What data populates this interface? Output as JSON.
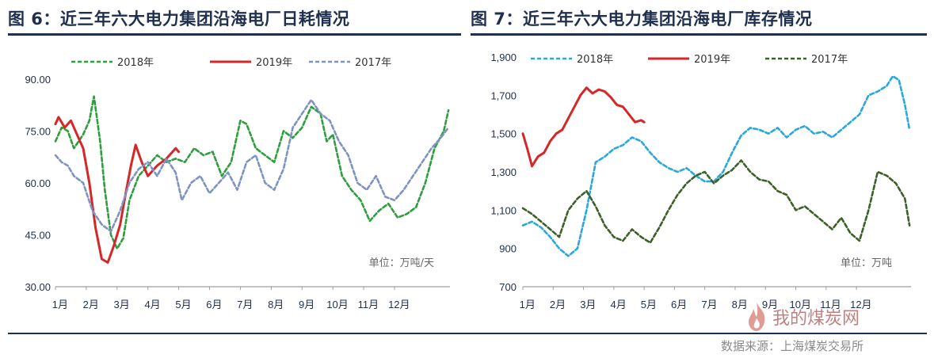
{
  "page": {
    "source": "数据来源：上海煤炭交易所",
    "watermark": "我的煤炭网",
    "watermark_url": "www.yicoal.cn"
  },
  "chart_data": [
    {
      "type": "line",
      "title": "图 6：近三年六大电力集团沿海电厂日耗情况",
      "unit": "单位：万吨/天",
      "xlabel": "",
      "ylabel": "",
      "ylim": [
        30,
        95
      ],
      "y_ticks": [
        "30.00",
        "45.00",
        "60.00",
        "75.00",
        "90.00"
      ],
      "y_tick_values": [
        30,
        45,
        60,
        75,
        90
      ],
      "x_ticks": [
        "1月",
        "2月",
        "3月",
        "4月",
        "5月",
        "6月",
        "7月",
        "8月",
        "9月",
        "10月",
        "11月",
        "12月"
      ],
      "xlim": [
        0,
        12.8
      ],
      "legend_position": "top",
      "grid": false,
      "series": [
        {
          "name": "2018年",
          "color": "#2e9e3f",
          "dash": "dashed",
          "x": [
            0,
            0.2,
            0.4,
            0.6,
            0.9,
            1.1,
            1.25,
            1.45,
            1.6,
            1.8,
            2.0,
            2.2,
            2.4,
            2.7,
            3.0,
            3.3,
            3.6,
            3.9,
            4.2,
            4.5,
            4.8,
            5.1,
            5.4,
            5.7,
            6.0,
            6.2,
            6.5,
            6.8,
            7.1,
            7.4,
            7.7,
            8.0,
            8.3,
            8.6,
            8.8,
            9.0,
            9.3,
            9.6,
            9.9,
            10.2,
            10.5,
            10.8,
            11.1,
            11.4,
            11.7,
            12.0,
            12.3,
            12.6,
            12.75
          ],
          "values": [
            72,
            76,
            75,
            70,
            74,
            78,
            85,
            72,
            58,
            45,
            41,
            44,
            55,
            62,
            65,
            68,
            66,
            67,
            66,
            70,
            68,
            69,
            62,
            66,
            78,
            77,
            70,
            68,
            66,
            75,
            73,
            76,
            82,
            80,
            72,
            74,
            62,
            58,
            55,
            49,
            52,
            54,
            50,
            51,
            53,
            60,
            70,
            75,
            81
          ]
        },
        {
          "name": "2019年",
          "color": "#d62728",
          "dash": "solid",
          "x": [
            0,
            0.1,
            0.3,
            0.5,
            0.7,
            0.9,
            1.1,
            1.3,
            1.5,
            1.7,
            1.9,
            2.1,
            2.3,
            2.45,
            2.6,
            2.8,
            3.0,
            3.3,
            3.6,
            3.9,
            4.0
          ],
          "values": [
            77,
            79,
            76,
            78,
            74,
            70,
            60,
            47,
            38,
            37,
            42,
            48,
            58,
            65,
            71,
            66,
            62,
            65,
            67,
            70,
            69
          ]
        },
        {
          "name": "2017年",
          "color": "#7f93c2",
          "dash": "dashed",
          "x": [
            0,
            0.2,
            0.4,
            0.6,
            0.9,
            1.2,
            1.5,
            1.8,
            2.1,
            2.4,
            2.7,
            3.0,
            3.3,
            3.6,
            3.9,
            4.1,
            4.4,
            4.7,
            5.0,
            5.3,
            5.6,
            5.9,
            6.2,
            6.5,
            6.8,
            7.1,
            7.4,
            7.7,
            8.0,
            8.3,
            8.6,
            8.9,
            9.2,
            9.5,
            9.8,
            10.1,
            10.4,
            10.7,
            11.0,
            11.3,
            11.6,
            11.9,
            12.2,
            12.5,
            12.75
          ],
          "values": [
            68,
            66,
            65,
            62,
            60,
            52,
            48,
            46,
            52,
            60,
            64,
            66,
            62,
            67,
            63,
            55,
            60,
            62,
            57,
            60,
            63,
            58,
            66,
            68,
            60,
            58,
            64,
            76,
            80,
            84,
            80,
            78,
            72,
            68,
            60,
            58,
            62,
            56,
            55,
            58,
            62,
            66,
            70,
            73,
            76
          ]
        }
      ]
    },
    {
      "type": "line",
      "title": "图 7：近三年六大电力集团沿海电厂库存情况",
      "unit": "单位：万吨",
      "xlabel": "",
      "ylabel": "",
      "ylim": [
        700,
        1900
      ],
      "y_ticks": [
        "700",
        "900",
        "1,100",
        "1,300",
        "1,500",
        "1,700",
        "1,900"
      ],
      "y_tick_values": [
        700,
        900,
        1100,
        1300,
        1500,
        1700,
        1900
      ],
      "x_ticks": [
        "1月",
        "2月",
        "3月",
        "4月",
        "5月",
        "6月",
        "7月",
        "8月",
        "9月",
        "10月",
        "11月",
        "12月"
      ],
      "xlim": [
        0,
        12.8
      ],
      "legend_position": "top",
      "grid": false,
      "series": [
        {
          "name": "2018年",
          "color": "#2aa7dd",
          "dash": "dashed",
          "x": [
            0,
            0.3,
            0.6,
            0.9,
            1.2,
            1.5,
            1.8,
            2.1,
            2.4,
            2.7,
            3.0,
            3.3,
            3.6,
            3.9,
            4.2,
            4.5,
            4.8,
            5.1,
            5.4,
            5.7,
            6.0,
            6.3,
            6.6,
            6.9,
            7.2,
            7.5,
            7.8,
            8.1,
            8.4,
            8.7,
            9.0,
            9.3,
            9.6,
            9.9,
            10.2,
            10.5,
            10.8,
            11.1,
            11.4,
            11.7,
            12.0,
            12.2,
            12.4,
            12.6,
            12.75
          ],
          "values": [
            1020,
            1040,
            1010,
            960,
            900,
            860,
            900,
            1100,
            1350,
            1380,
            1420,
            1440,
            1480,
            1460,
            1400,
            1350,
            1320,
            1300,
            1320,
            1280,
            1250,
            1250,
            1300,
            1400,
            1490,
            1530,
            1520,
            1500,
            1530,
            1480,
            1520,
            1540,
            1500,
            1510,
            1480,
            1520,
            1560,
            1600,
            1700,
            1720,
            1750,
            1800,
            1780,
            1650,
            1520
          ]
        },
        {
          "name": "2019年",
          "color": "#d62728",
          "dash": "solid",
          "x": [
            0,
            0.15,
            0.3,
            0.5,
            0.7,
            0.9,
            1.1,
            1.3,
            1.5,
            1.7,
            1.9,
            2.1,
            2.3,
            2.5,
            2.7,
            2.9,
            3.1,
            3.3,
            3.5,
            3.7,
            3.9,
            4.0
          ],
          "values": [
            1500,
            1420,
            1330,
            1380,
            1400,
            1460,
            1500,
            1520,
            1580,
            1640,
            1700,
            1740,
            1710,
            1730,
            1720,
            1690,
            1650,
            1640,
            1600,
            1560,
            1570,
            1560
          ]
        },
        {
          "name": "2017年",
          "color": "#3b6128",
          "dash": "dashed",
          "x": [
            0,
            0.3,
            0.6,
            0.9,
            1.2,
            1.5,
            1.8,
            2.1,
            2.4,
            2.7,
            3.0,
            3.3,
            3.6,
            3.9,
            4.2,
            4.5,
            4.8,
            5.1,
            5.4,
            5.7,
            6.0,
            6.3,
            6.6,
            6.9,
            7.2,
            7.5,
            7.8,
            8.1,
            8.4,
            8.7,
            9.0,
            9.3,
            9.6,
            9.9,
            10.2,
            10.5,
            10.8,
            11.1,
            11.4,
            11.7,
            12.0,
            12.3,
            12.6,
            12.75
          ],
          "values": [
            1110,
            1080,
            1040,
            1000,
            960,
            1100,
            1160,
            1200,
            1120,
            1020,
            960,
            940,
            1000,
            960,
            930,
            1010,
            1100,
            1180,
            1240,
            1280,
            1300,
            1240,
            1280,
            1310,
            1360,
            1300,
            1260,
            1250,
            1200,
            1180,
            1100,
            1120,
            1080,
            1040,
            1000,
            1060,
            980,
            940,
            1100,
            1300,
            1280,
            1240,
            1160,
            1020
          ]
        }
      ]
    }
  ]
}
